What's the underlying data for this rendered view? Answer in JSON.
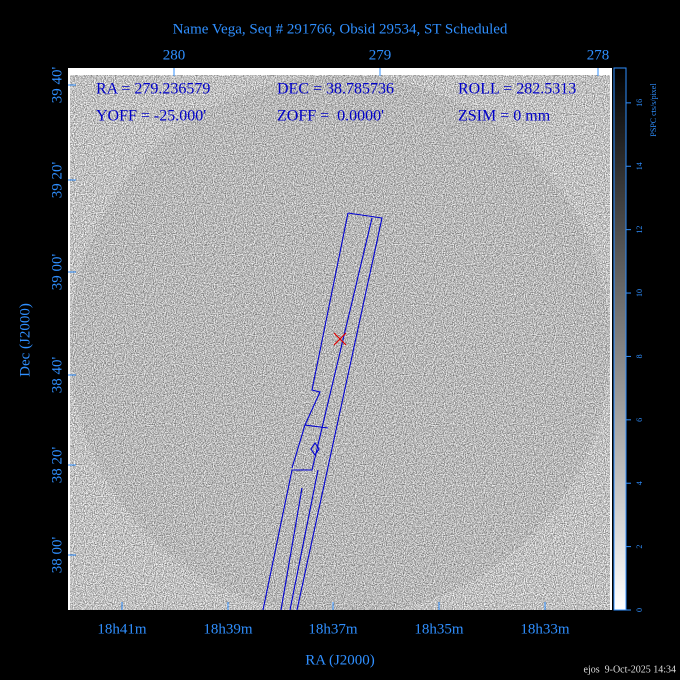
{
  "header": {
    "title": "Name Vega, Seq # 291766, Obsid 29534, ST Scheduled"
  },
  "info": {
    "ra": "RA = 279.236579",
    "dec": "DEC = 38.785736",
    "roll": "ROLL = 282.5313",
    "yoff": "YOFF = -25.000'",
    "zoff": "ZOFF =  0.0000'",
    "zsim": "ZSIM = 0 mm"
  },
  "axes": {
    "x_label": "RA (J2000)",
    "y_label": "Dec (J2000)",
    "top_ticks": [
      "280",
      "279",
      "278"
    ],
    "left_ticks": [
      "39 40'",
      "39 20'",
      "39 00'",
      "38 40'",
      "38 20'",
      "38 00'"
    ],
    "bottom_ticks": [
      "18h41m",
      "18h39m",
      "18h37m",
      "18h35m",
      "18h33m"
    ]
  },
  "colorbar": {
    "label": "PSPC cts/s/pixel",
    "ticks": [
      0,
      2,
      4,
      6,
      8,
      10,
      12,
      14,
      16
    ]
  },
  "footer": {
    "stamp": "ejos  9-Oct-2025 14:34"
  }
}
